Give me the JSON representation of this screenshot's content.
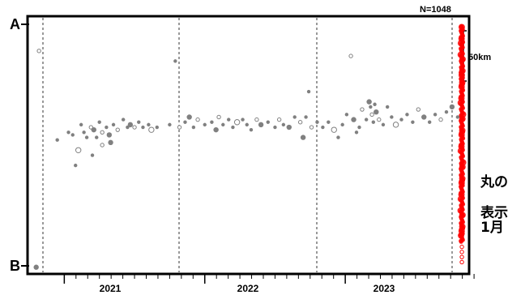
{
  "chart_data": {
    "type": "scatter",
    "title": "",
    "n_label": "N=1048",
    "xlabel": "",
    "ylabel": "",
    "axis_end_labels": {
      "top": "A",
      "bottom": "B"
    },
    "scale_label": "50km",
    "x_ticks": [
      "2021",
      "2022",
      "2023"
    ],
    "xlim": [
      2020.75,
      2023.87
    ],
    "ylim": [
      0,
      100
    ],
    "grid": "dashed vertical lines at year boundaries",
    "series": [
      {
        "color": "#808080",
        "points": [
          [
            2020.8,
            2
          ],
          [
            2020.82,
            87
          ],
          [
            2020.95,
            52
          ],
          [
            2021.03,
            55
          ],
          [
            2021.06,
            54
          ],
          [
            2021.1,
            48
          ],
          [
            2021.12,
            58
          ],
          [
            2021.14,
            55
          ],
          [
            2021.16,
            53
          ],
          [
            2021.19,
            57
          ],
          [
            2021.21,
            56
          ],
          [
            2021.23,
            53
          ],
          [
            2021.25,
            59
          ],
          [
            2021.27,
            55
          ],
          [
            2021.3,
            57
          ],
          [
            2021.32,
            54
          ],
          [
            2021.35,
            58
          ],
          [
            2021.38,
            56
          ],
          [
            2021.42,
            60
          ],
          [
            2021.45,
            57
          ],
          [
            2021.47,
            58
          ],
          [
            2021.5,
            57
          ],
          [
            2021.53,
            59
          ],
          [
            2021.56,
            57
          ],
          [
            2021.6,
            58
          ],
          [
            2021.62,
            56
          ],
          [
            2021.66,
            57
          ],
          [
            2021.08,
            42
          ],
          [
            2021.2,
            46
          ],
          [
            2021.27,
            50
          ],
          [
            2021.33,
            51
          ],
          [
            2021.75,
            58
          ],
          [
            2021.79,
            83
          ],
          [
            2021.82,
            57
          ],
          [
            2021.86,
            59
          ],
          [
            2021.89,
            61
          ],
          [
            2021.92,
            57
          ],
          [
            2021.95,
            60
          ],
          [
            2022.0,
            58
          ],
          [
            2022.05,
            59
          ],
          [
            2022.08,
            56
          ],
          [
            2022.1,
            61
          ],
          [
            2022.13,
            58
          ],
          [
            2022.17,
            60
          ],
          [
            2022.2,
            57
          ],
          [
            2022.23,
            59
          ],
          [
            2022.27,
            60
          ],
          [
            2022.3,
            58
          ],
          [
            2022.33,
            56
          ],
          [
            2022.37,
            60
          ],
          [
            2022.4,
            58
          ],
          [
            2022.45,
            59
          ],
          [
            2022.5,
            57
          ],
          [
            2022.53,
            60
          ],
          [
            2022.56,
            58
          ],
          [
            2022.6,
            57
          ],
          [
            2022.64,
            61
          ],
          [
            2022.68,
            59
          ],
          [
            2022.72,
            61
          ],
          [
            2022.74,
            71
          ],
          [
            2022.7,
            53
          ],
          [
            2022.76,
            57
          ],
          [
            2022.8,
            59
          ],
          [
            2022.84,
            57
          ],
          [
            2022.88,
            59
          ],
          [
            2022.92,
            56
          ],
          [
            2022.95,
            53
          ],
          [
            2022.98,
            58
          ],
          [
            2023.01,
            62
          ],
          [
            2023.04,
            85
          ],
          [
            2023.06,
            60
          ],
          [
            2023.08,
            55
          ],
          [
            2023.1,
            57
          ],
          [
            2023.12,
            64
          ],
          [
            2023.15,
            60
          ],
          [
            2023.17,
            67
          ],
          [
            2023.18,
            65
          ],
          [
            2023.19,
            62
          ],
          [
            2023.2,
            59
          ],
          [
            2023.21,
            66
          ],
          [
            2023.22,
            63
          ],
          [
            2023.24,
            60
          ],
          [
            2023.27,
            58
          ],
          [
            2023.3,
            65
          ],
          [
            2023.33,
            61
          ],
          [
            2023.36,
            58
          ],
          [
            2023.4,
            60
          ],
          [
            2023.44,
            62
          ],
          [
            2023.48,
            59
          ],
          [
            2023.52,
            64
          ],
          [
            2023.56,
            61
          ],
          [
            2023.6,
            59
          ],
          [
            2023.64,
            62
          ],
          [
            2023.68,
            60
          ],
          [
            2023.72,
            63
          ],
          [
            2023.76,
            65
          ],
          [
            2023.8,
            61
          ]
        ]
      },
      {
        "color": "#ff0000",
        "points_x": 2023.83,
        "y_range": [
          12,
          97
        ]
      }
    ]
  },
  "right_notes": [
    "丸の",
    "表示",
    "1月"
  ]
}
